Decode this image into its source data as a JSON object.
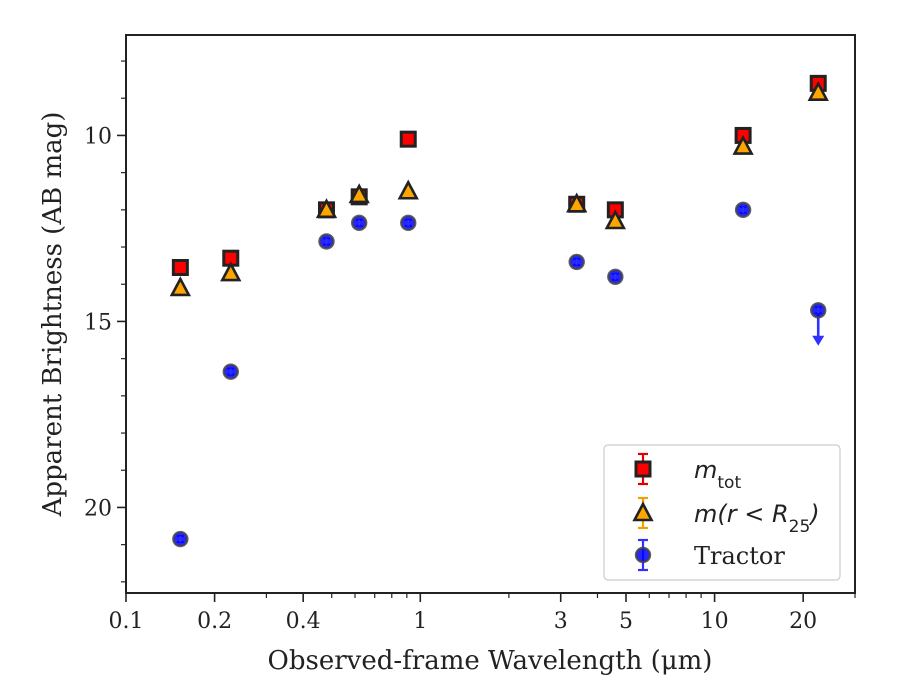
{
  "chart_data": {
    "type": "scatter",
    "xlabel": "Observed-frame Wavelength (μm)",
    "ylabel": "Apparent Brightness (AB mag)",
    "x_scale": "log",
    "xlim": [
      0.1,
      30
    ],
    "ylim": [
      22.3,
      7.3
    ],
    "y_inverted": true,
    "grid": false,
    "legend_position": "lower-right",
    "x_ticks": [
      {
        "value": 0.1,
        "label": "0.1"
      },
      {
        "value": 0.2,
        "label": "0.2"
      },
      {
        "value": 0.4,
        "label": "0.4"
      },
      {
        "value": 1,
        "label": "1"
      },
      {
        "value": 3,
        "label": "3"
      },
      {
        "value": 5,
        "label": "5"
      },
      {
        "value": 10,
        "label": "10"
      },
      {
        "value": 20,
        "label": "20"
      }
    ],
    "x_minor_ticks": [
      0.3,
      0.5,
      0.6,
      0.7,
      0.8,
      0.9,
      2,
      4,
      6,
      7,
      8,
      9,
      30
    ],
    "y_ticks": [
      {
        "value": 10,
        "label": "10"
      },
      {
        "value": 15,
        "label": "15"
      },
      {
        "value": 20,
        "label": "20"
      }
    ],
    "y_minor_ticks": [
      8,
      9,
      11,
      12,
      13,
      14,
      16,
      17,
      18,
      19,
      21,
      22
    ],
    "series": [
      {
        "name": "m_tot",
        "legend_main": "m",
        "legend_sub": "tot",
        "marker": "square",
        "color": "#ff0000",
        "edge": "#222222",
        "errcolor": "#e00000",
        "points": [
          {
            "x": 0.153,
            "y": 13.55
          },
          {
            "x": 0.227,
            "y": 13.3
          },
          {
            "x": 0.48,
            "y": 12.0
          },
          {
            "x": 0.62,
            "y": 11.65
          },
          {
            "x": 0.91,
            "y": 10.1
          },
          {
            "x": 3.4,
            "y": 11.85
          },
          {
            "x": 4.6,
            "y": 12.0
          },
          {
            "x": 12.5,
            "y": 10.0
          },
          {
            "x": 22.5,
            "y": 8.6
          }
        ]
      },
      {
        "name": "m(r < R25)",
        "legend_main": "m(r < R",
        "legend_sub": "25",
        "legend_tail": ")",
        "marker": "triangle",
        "color": "#ffa500",
        "edge": "#222222",
        "errcolor": "#f0a000",
        "points": [
          {
            "x": 0.153,
            "y": 14.1
          },
          {
            "x": 0.227,
            "y": 13.7
          },
          {
            "x": 0.48,
            "y": 12.0
          },
          {
            "x": 0.62,
            "y": 11.6
          },
          {
            "x": 0.91,
            "y": 11.5
          },
          {
            "x": 3.4,
            "y": 11.85
          },
          {
            "x": 4.6,
            "y": 12.3
          },
          {
            "x": 12.5,
            "y": 10.3
          },
          {
            "x": 22.5,
            "y": 8.85
          }
        ]
      },
      {
        "name": "Tractor",
        "marker": "circle",
        "color": "#0000ff",
        "edge": "#444444",
        "errcolor": "#3030ff",
        "points": [
          {
            "x": 0.153,
            "y": 20.85
          },
          {
            "x": 0.227,
            "y": 16.35
          },
          {
            "x": 0.48,
            "y": 12.85
          },
          {
            "x": 0.62,
            "y": 12.35
          },
          {
            "x": 0.91,
            "y": 12.35
          },
          {
            "x": 3.4,
            "y": 13.4
          },
          {
            "x": 4.6,
            "y": 13.8
          },
          {
            "x": 12.5,
            "y": 12.0
          },
          {
            "x": 22.5,
            "y": 14.7,
            "upper_limit": true,
            "limit_to": 15.6
          }
        ]
      }
    ]
  }
}
